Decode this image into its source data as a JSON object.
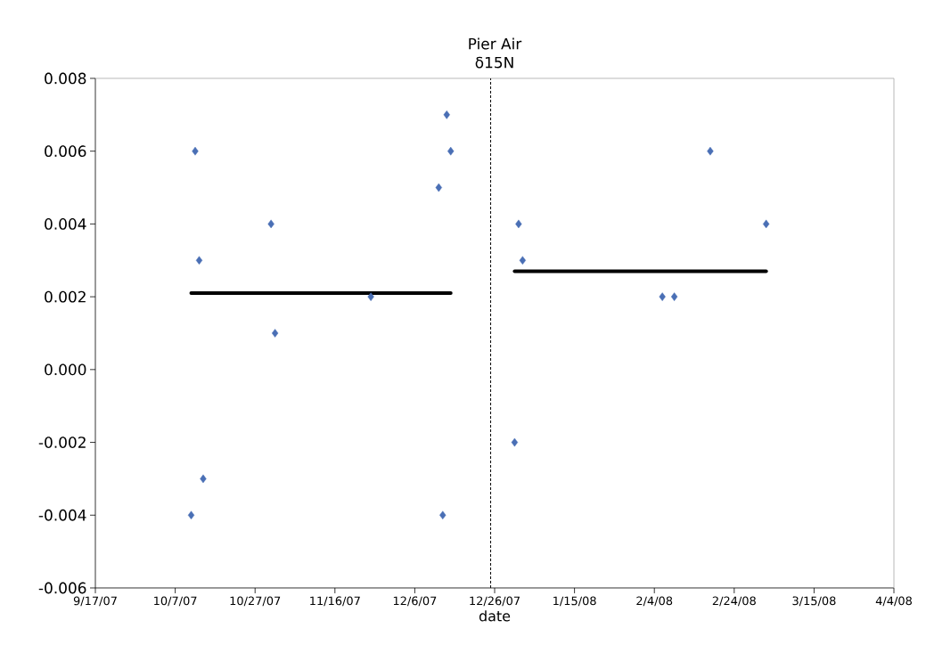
{
  "chart_data": {
    "type": "scatter",
    "title": "Pier Air",
    "subtitle": "δ15N",
    "xlabel": "date",
    "xlim": [
      "2007-09-17",
      "2008-04-04"
    ],
    "xticks": [
      {
        "value": "2007-09-17",
        "label": "9/17/07"
      },
      {
        "value": "2007-10-07",
        "label": "10/7/07"
      },
      {
        "value": "2007-10-27",
        "label": "10/27/07"
      },
      {
        "value": "2007-11-16",
        "label": "11/16/07"
      },
      {
        "value": "2007-12-06",
        "label": "12/6/07"
      },
      {
        "value": "2007-12-26",
        "label": "12/26/07"
      },
      {
        "value": "2008-01-15",
        "label": "1/15/08"
      },
      {
        "value": "2008-02-04",
        "label": "2/4/08"
      },
      {
        "value": "2008-02-24",
        "label": "2/24/08"
      },
      {
        "value": "2008-03-15",
        "label": "3/15/08"
      },
      {
        "value": "2008-04-04",
        "label": "4/4/08"
      }
    ],
    "ylim": [
      -0.006,
      0.008
    ],
    "yticks": [
      {
        "value": -0.006,
        "label": "-0.006"
      },
      {
        "value": -0.004,
        "label": "-0.004"
      },
      {
        "value": -0.002,
        "label": "-0.002"
      },
      {
        "value": 0,
        "label": "0.000"
      },
      {
        "value": 0.002,
        "label": "0.002"
      },
      {
        "value": 0.004,
        "label": "0.004"
      },
      {
        "value": 0.006,
        "label": "0.006"
      },
      {
        "value": 0.008,
        "label": "0.008"
      }
    ],
    "marker": "diamond",
    "grid": false,
    "series": [
      {
        "type": "scatter",
        "color": "#4a6fb5",
        "x": [
          "2007-10-11",
          "2007-10-12",
          "2007-10-13",
          "2007-10-14",
          "2007-10-31",
          "2007-11-01",
          "2007-11-25",
          "2007-12-12",
          "2007-12-13",
          "2007-12-14",
          "2007-12-15",
          "2007-12-31",
          "2008-01-01",
          "2008-01-02",
          "2008-02-06",
          "2008-02-09",
          "2008-02-18",
          "2008-03-03"
        ],
        "values": [
          -0.004,
          0.006,
          0.003,
          -0.003,
          0.004,
          0.001,
          0.002,
          0.005,
          -0.004,
          0.007,
          0.006,
          -0.002,
          0.004,
          0.003,
          0.002,
          0.002,
          0.006,
          0.004
        ]
      },
      {
        "type": "line",
        "marker": "none",
        "color": "#000000",
        "x": [
          "2007-10-11",
          "2007-12-15"
        ],
        "values": [
          0.0021,
          0.0021
        ]
      },
      {
        "type": "line",
        "marker": "none",
        "color": "#000000",
        "x": [
          "2007-12-31",
          "2008-03-03"
        ],
        "values": [
          0.0027,
          0.0027
        ]
      }
    ],
    "ref_lines": [
      {
        "axis": "x",
        "value": "2007-12-25",
        "color": "#000000",
        "line_style": "dashed"
      }
    ]
  }
}
